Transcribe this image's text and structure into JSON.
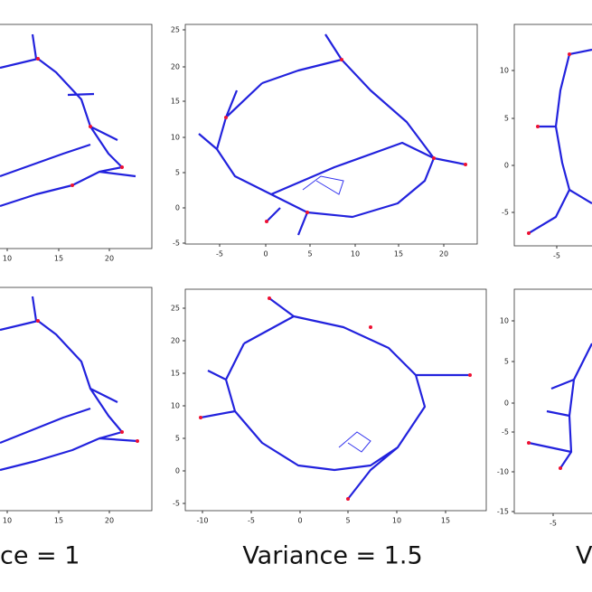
{
  "panels": [
    {
      "xticks": [
        10,
        15,
        20
      ],
      "yticks": []
    },
    {
      "xticks": [
        -5,
        0,
        5,
        10,
        15,
        20
      ],
      "yticks": [
        25,
        20,
        15,
        10,
        5,
        0,
        -5
      ]
    },
    {
      "xticks": [
        -5
      ],
      "yticks": [
        10,
        5,
        0,
        -5
      ]
    },
    {
      "xticks": [
        10,
        15,
        20
      ],
      "yticks": []
    },
    {
      "xticks": [
        -10,
        -5,
        0,
        5,
        10,
        15
      ],
      "yticks": [
        25,
        20,
        15,
        10,
        5,
        0,
        -5
      ]
    },
    {
      "xticks": [
        -5
      ],
      "yticks": [
        10,
        5,
        0,
        -5,
        -10,
        -15
      ]
    }
  ],
  "captions": [
    "ce = 1",
    "Variance = 1.5",
    "V"
  ]
}
